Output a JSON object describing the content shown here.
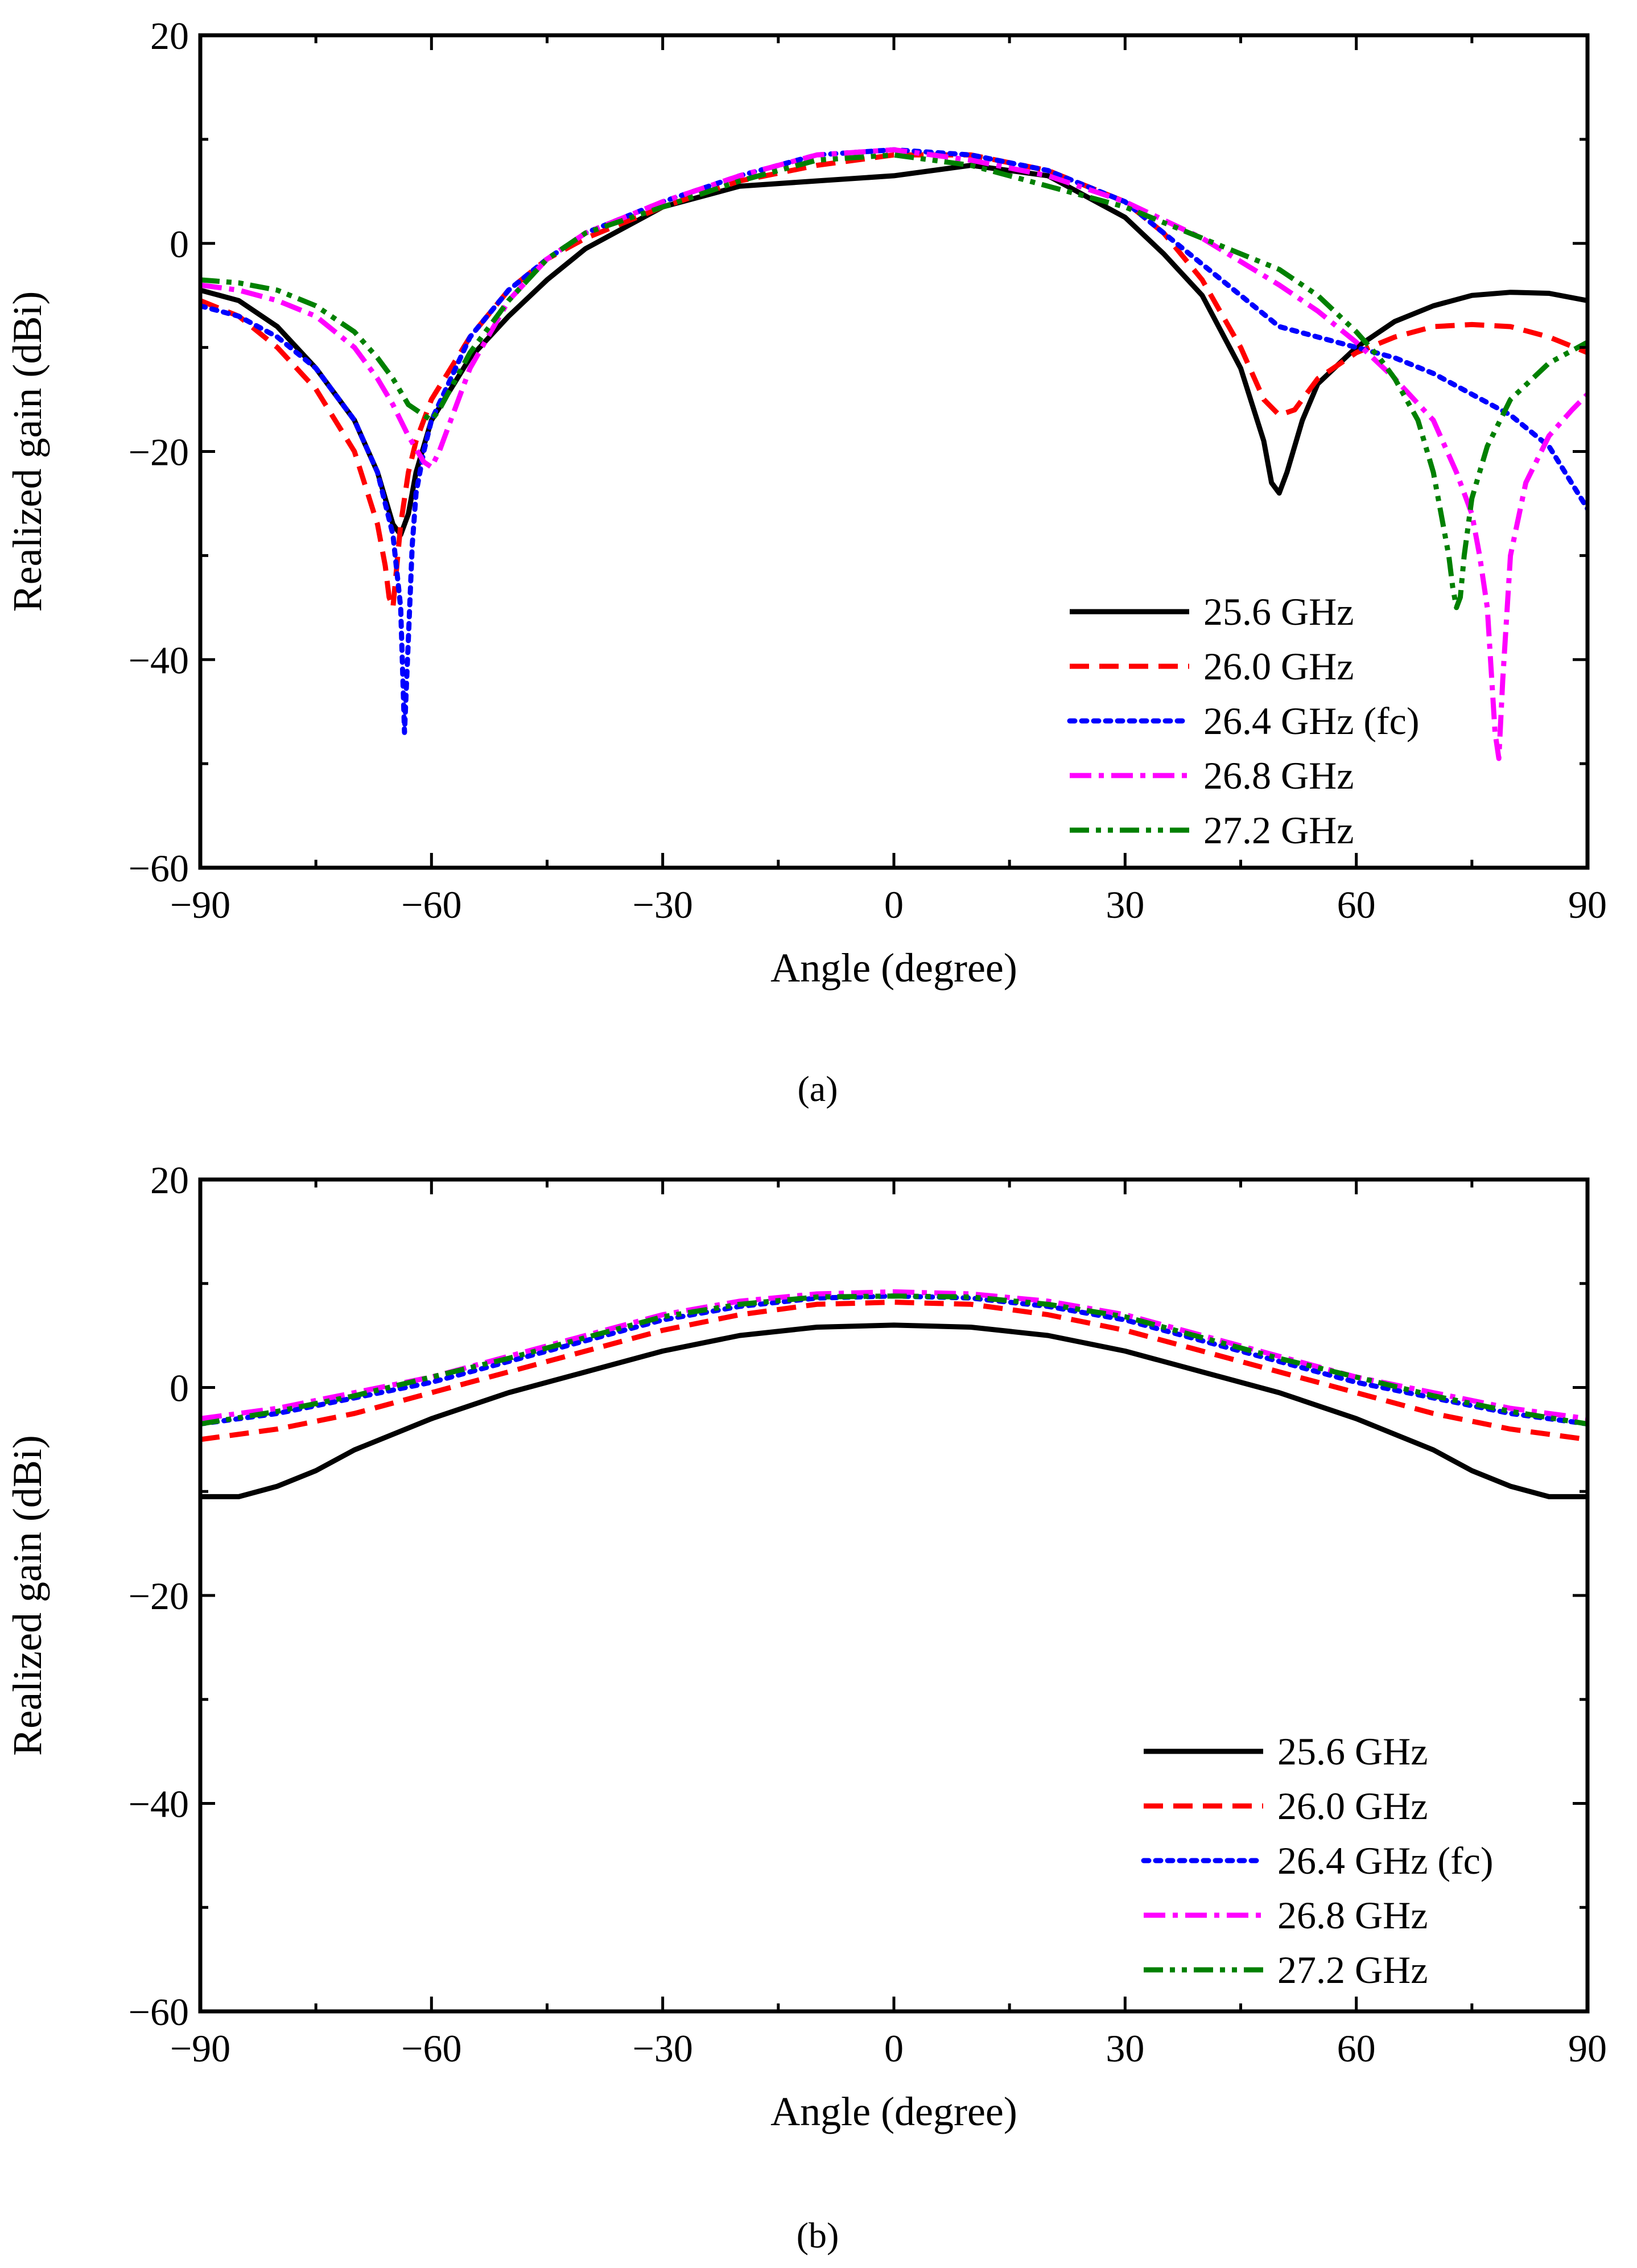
{
  "figure": {
    "captions": [
      "(a)",
      "(b)"
    ]
  },
  "chart_data": [
    {
      "type": "line",
      "panel": "a",
      "caption": "(a)",
      "xlabel": "Angle (degree)",
      "ylabel": "Realized gain (dBi)",
      "xlim": [
        -90,
        90
      ],
      "ylim": [
        -60,
        20
      ],
      "xticks": [
        -90,
        -60,
        -30,
        0,
        30,
        60,
        90
      ],
      "yticks": [
        -60,
        -40,
        -20,
        0,
        20
      ],
      "xtick_labels": [
        "−90",
        "−60",
        "−30",
        "0",
        "30",
        "60",
        "90"
      ],
      "ytick_labels": [
        "−60",
        "−40",
        "−20",
        "0",
        "20"
      ],
      "legend_position": "lower-right",
      "series": [
        {
          "name": "25.6 GHz",
          "color": "#000000",
          "dash": "solid",
          "x": [
            -90,
            -85,
            -80,
            -75,
            -70,
            -67,
            -65,
            -64,
            -63,
            -62,
            -60,
            -55,
            -50,
            -45,
            -40,
            -30,
            -20,
            -10,
            0,
            10,
            20,
            30,
            35,
            40,
            45,
            48,
            49,
            50,
            51,
            53,
            55,
            60,
            65,
            70,
            75,
            80,
            85,
            90
          ],
          "y": [
            -4.5,
            -5.5,
            -8,
            -12,
            -17,
            -22,
            -27,
            -28,
            -26,
            -22,
            -17,
            -11,
            -7,
            -3.5,
            -0.5,
            3.5,
            5.5,
            6,
            6.5,
            7.5,
            6.5,
            2.5,
            -1,
            -5,
            -12,
            -19,
            -23,
            -24,
            -22,
            -17,
            -13.5,
            -10,
            -7.5,
            -6,
            -5,
            -4.7,
            -4.8,
            -5.5
          ]
        },
        {
          "name": "26.0 GHz",
          "color": "#ff0000",
          "dash": "dashed",
          "x": [
            -90,
            -85,
            -80,
            -75,
            -70,
            -67,
            -66,
            -65.5,
            -65,
            -64.5,
            -64,
            -63,
            -62,
            -60,
            -55,
            -50,
            -45,
            -40,
            -30,
            -20,
            -10,
            0,
            10,
            20,
            30,
            35,
            40,
            45,
            48,
            50,
            52,
            55,
            60,
            65,
            70,
            75,
            80,
            85,
            90
          ],
          "y": [
            -5.5,
            -7,
            -10,
            -14,
            -20,
            -27,
            -31,
            -34,
            -35,
            -31,
            -27,
            -22,
            -19,
            -15,
            -9,
            -4.5,
            -1.5,
            0.5,
            3.5,
            6,
            7.5,
            8.5,
            8.5,
            7,
            4,
            1,
            -3.5,
            -10,
            -15,
            -16.5,
            -16,
            -13,
            -10.5,
            -9,
            -8,
            -7.8,
            -8,
            -9,
            -10.5
          ]
        },
        {
          "name": "26.4 GHz (fc)",
          "color": "#0000ff",
          "dash": "dotted",
          "x": [
            -90,
            -85,
            -80,
            -75,
            -70,
            -67,
            -65,
            -64,
            -63.5,
            -63,
            -62.5,
            -62,
            -61,
            -60,
            -55,
            -50,
            -45,
            -40,
            -30,
            -20,
            -10,
            0,
            10,
            20,
            30,
            40,
            45,
            50,
            55,
            60,
            65,
            70,
            75,
            80,
            85,
            90
          ],
          "y": [
            -6,
            -7,
            -9,
            -12,
            -17,
            -22,
            -28,
            -35,
            -47,
            -38,
            -29,
            -24,
            -20,
            -17,
            -9,
            -4.5,
            -1.5,
            1,
            4,
            6.5,
            8.5,
            9,
            8.5,
            7,
            4,
            -2,
            -5,
            -8,
            -9,
            -10,
            -11,
            -12.5,
            -14.5,
            -16.5,
            -19.5,
            -25.5
          ]
        },
        {
          "name": "26.8 GHz",
          "color": "#ff00ff",
          "dash": "dashdot",
          "x": [
            -90,
            -85,
            -80,
            -75,
            -70,
            -67,
            -65,
            -63,
            -61,
            -60,
            -59,
            -55,
            -50,
            -45,
            -40,
            -30,
            -20,
            -10,
            0,
            10,
            20,
            30,
            40,
            50,
            55,
            60,
            65,
            70,
            73,
            75,
            76,
            77,
            77.5,
            78,
            78.5,
            79,
            80,
            82,
            85,
            88,
            90
          ],
          "y": [
            -4,
            -4.5,
            -5.5,
            -7,
            -10,
            -13,
            -15.5,
            -18.5,
            -21,
            -21.5,
            -20,
            -12,
            -5.5,
            -1.5,
            1,
            4,
            6.5,
            8.5,
            9,
            8,
            6.5,
            4,
            0.5,
            -4,
            -6.5,
            -9.5,
            -13,
            -17,
            -22,
            -26,
            -30,
            -35,
            -41,
            -47,
            -49.5,
            -42,
            -30,
            -23,
            -18.5,
            -16,
            -14.5
          ]
        },
        {
          "name": "27.2 GHz",
          "color": "#008000",
          "dash": "dashdotdot",
          "x": [
            -90,
            -85,
            -80,
            -75,
            -70,
            -67,
            -65,
            -63,
            -62,
            -60,
            -59,
            -55,
            -50,
            -45,
            -40,
            -30,
            -20,
            -10,
            0,
            10,
            20,
            30,
            40,
            50,
            55,
            60,
            63,
            65,
            68,
            70,
            71,
            72,
            72.5,
            73,
            73.5,
            74,
            75,
            77,
            80,
            85,
            90
          ],
          "y": [
            -3.5,
            -3.8,
            -4.5,
            -6,
            -8.5,
            -11,
            -13,
            -15.5,
            -16,
            -17,
            -16,
            -10.5,
            -5.5,
            -1.5,
            1,
            3.5,
            6,
            8,
            8.5,
            7.5,
            5.5,
            3.5,
            0.5,
            -2.5,
            -5,
            -8.5,
            -11,
            -13,
            -17,
            -22,
            -26,
            -30,
            -33,
            -35,
            -34,
            -30,
            -24.5,
            -19.5,
            -15,
            -11.5,
            -9.5
          ]
        }
      ]
    },
    {
      "type": "line",
      "panel": "b",
      "caption": "(b)",
      "xlabel": "Angle (degree)",
      "ylabel": "Realized gain (dBi)",
      "xlim": [
        -90,
        90
      ],
      "ylim": [
        -60,
        20
      ],
      "xticks": [
        -90,
        -60,
        -30,
        0,
        30,
        60,
        90
      ],
      "yticks": [
        -60,
        -40,
        -20,
        0,
        20
      ],
      "xtick_labels": [
        "−90",
        "−60",
        "−30",
        "0",
        "30",
        "60",
        "90"
      ],
      "ytick_labels": [
        "−60",
        "−40",
        "−20",
        "0",
        "20"
      ],
      "legend_position": "lower-right",
      "series": [
        {
          "name": "25.6 GHz",
          "color": "#000000",
          "dash": "solid",
          "x": [
            -90,
            -85,
            -80,
            -75,
            -70,
            -60,
            -50,
            -40,
            -30,
            -20,
            -10,
            0,
            10,
            20,
            30,
            40,
            50,
            60,
            70,
            75,
            80,
            85,
            90
          ],
          "y": [
            -10.5,
            -10.5,
            -9.5,
            -8,
            -6,
            -3,
            -0.5,
            1.5,
            3.5,
            5,
            5.8,
            6,
            5.8,
            5,
            3.5,
            1.5,
            -0.5,
            -3,
            -6,
            -8,
            -9.5,
            -10.5,
            -10.5
          ]
        },
        {
          "name": "26.0 GHz",
          "color": "#ff0000",
          "dash": "dashed",
          "x": [
            -90,
            -80,
            -70,
            -60,
            -50,
            -40,
            -30,
            -20,
            -10,
            0,
            10,
            20,
            30,
            40,
            50,
            60,
            70,
            80,
            90
          ],
          "y": [
            -5,
            -4,
            -2.5,
            -0.5,
            1.5,
            3.5,
            5.5,
            7,
            8,
            8.2,
            8,
            7,
            5.5,
            3.5,
            1.5,
            -0.5,
            -2.5,
            -4,
            -5
          ]
        },
        {
          "name": "26.4 GHz (fc)",
          "color": "#0000ff",
          "dash": "dotted",
          "x": [
            -90,
            -80,
            -70,
            -60,
            -50,
            -40,
            -30,
            -20,
            -10,
            0,
            10,
            20,
            30,
            40,
            50,
            60,
            70,
            80,
            90
          ],
          "y": [
            -3.5,
            -2.5,
            -1,
            0.5,
            2.5,
            4.5,
            6.5,
            7.8,
            8.6,
            8.8,
            8.6,
            7.8,
            6.5,
            4.5,
            2.5,
            0.5,
            -1,
            -2.5,
            -3.5
          ]
        },
        {
          "name": "26.8 GHz",
          "color": "#ff00ff",
          "dash": "dashdot",
          "x": [
            -90,
            -80,
            -70,
            -60,
            -50,
            -40,
            -30,
            -20,
            -10,
            0,
            10,
            20,
            30,
            40,
            50,
            60,
            70,
            80,
            90
          ],
          "y": [
            -3,
            -2,
            -0.5,
            1,
            3,
            5,
            7,
            8.3,
            9,
            9.2,
            9,
            8.3,
            7,
            5,
            3,
            1,
            -0.5,
            -2,
            -3
          ]
        },
        {
          "name": "27.2 GHz",
          "color": "#008000",
          "dash": "dashdotdot",
          "x": [
            -90,
            -80,
            -70,
            -60,
            -50,
            -40,
            -30,
            -20,
            -10,
            0,
            10,
            20,
            30,
            40,
            50,
            60,
            70,
            80,
            90
          ],
          "y": [
            -3.5,
            -2.3,
            -0.8,
            1,
            2.8,
            4.8,
            6.8,
            8,
            8.7,
            8.8,
            8.7,
            8,
            6.8,
            4.8,
            2.8,
            1,
            -0.8,
            -2.3,
            -3.5
          ]
        }
      ]
    }
  ]
}
